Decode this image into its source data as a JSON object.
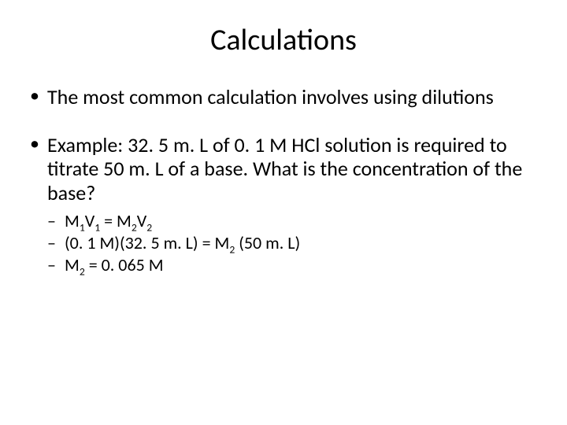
{
  "slide": {
    "title": "Calculations",
    "bullets": [
      {
        "text": "The most common calculation involves using dilutions"
      },
      {
        "text": "Example:  32. 5 m. L of 0. 1 M HCl solution is required to titrate 50 m. L of a base.  What is the concentration of the base?",
        "sub": [
          {
            "parts": [
              "M",
              "1",
              "V",
              "1",
              " = M",
              "2",
              "V",
              "2"
            ]
          },
          {
            "parts": [
              "(0. 1 M)(32. 5 m. L) = M",
              "2",
              " (50 m. L)"
            ]
          },
          {
            "parts": [
              " M",
              "2",
              " = 0. 065 M"
            ]
          }
        ]
      }
    ]
  },
  "style": {
    "background_color": "#ffffff",
    "text_color": "#000000",
    "title_fontsize": 38,
    "body_fontsize": 26,
    "sub_fontsize": 22,
    "font_family": "Calibri"
  }
}
